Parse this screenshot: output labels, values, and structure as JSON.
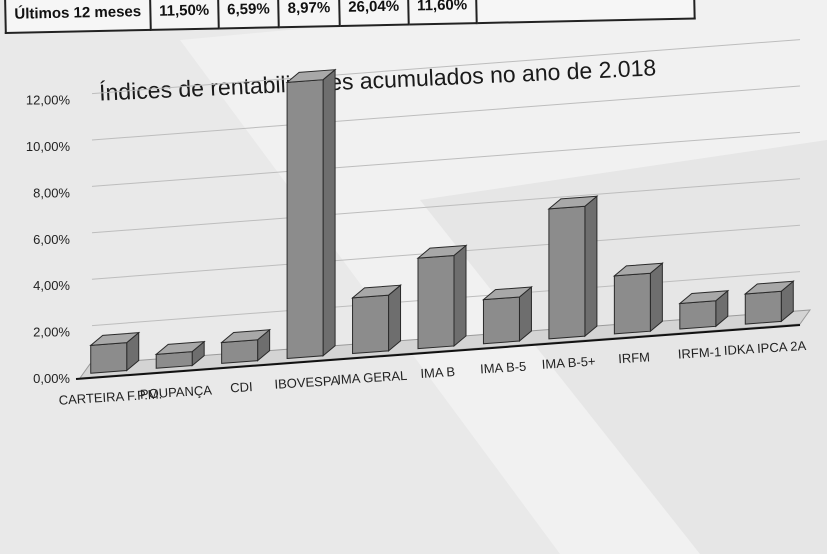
{
  "table_row": {
    "label": "Últimos 12 meses",
    "cells": [
      "11,50%",
      "6,59%",
      "8,97%",
      "26,04%",
      "11,60%"
    ]
  },
  "chart_data": {
    "type": "bar",
    "title": "Índices de rentabilidades acumulados no ano de 2.018",
    "categories": [
      "CARTEIRA F.P.M.",
      "POUPANÇA",
      "CDI",
      "IBOVESPA",
      "IMA GERAL",
      "IMA B",
      "IMA B-5",
      "IMA B-5+",
      "IRFM",
      "IRFM-1",
      "IDKA IPCA 2A"
    ],
    "values": [
      1.2,
      0.6,
      0.9,
      11.9,
      2.4,
      3.9,
      1.9,
      5.6,
      2.5,
      1.1,
      1.3
    ],
    "yticks": [
      "0,00%",
      "2,00%",
      "4,00%",
      "6,00%",
      "8,00%",
      "10,00%",
      "12,00%"
    ],
    "ylim": [
      0,
      12
    ],
    "grid": true,
    "bar_color": "#8c8c8c"
  }
}
